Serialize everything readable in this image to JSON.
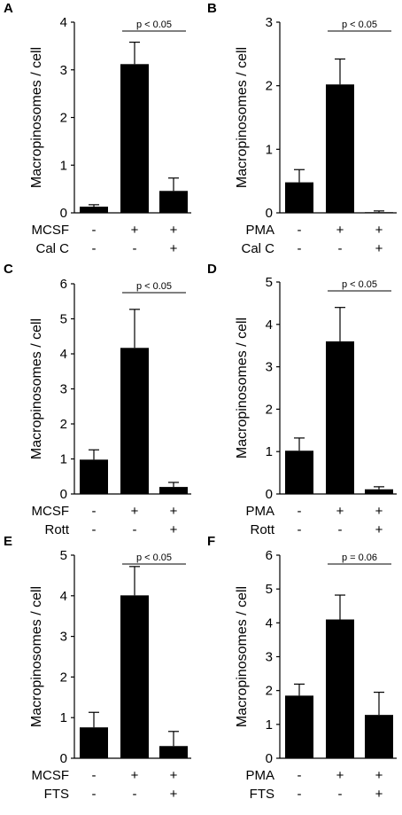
{
  "chart_data": [
    {
      "panel": "A",
      "type": "bar",
      "ylabel": "Macropinosomes / cell",
      "ylim": [
        0,
        4
      ],
      "yticks": [
        "0",
        "1",
        "2",
        "3",
        "4"
      ],
      "values": [
        0.13,
        3.12,
        0.46
      ],
      "errors": [
        0.04,
        0.46,
        0.27
      ],
      "conditions": [
        {
          "label": "MCSF",
          "signs": [
            "-",
            "+",
            "+"
          ]
        },
        {
          "label": "Cal C",
          "signs": [
            "-",
            "-",
            "+"
          ]
        }
      ],
      "annotation": {
        "text": "p < 0.05",
        "from": 1,
        "to": 2
      }
    },
    {
      "panel": "B",
      "type": "bar",
      "ylabel": "Macropinosomes / cell",
      "ylim": [
        0,
        3
      ],
      "yticks": [
        "0",
        "1",
        "2",
        "3"
      ],
      "values": [
        0.48,
        2.02,
        0.01
      ],
      "errors": [
        0.2,
        0.4,
        0.02
      ],
      "conditions": [
        {
          "label": "PMA",
          "signs": [
            "-",
            "+",
            "+"
          ]
        },
        {
          "label": "Cal C",
          "signs": [
            "-",
            "-",
            "+"
          ]
        }
      ],
      "annotation": {
        "text": "p < 0.05",
        "from": 1,
        "to": 2
      }
    },
    {
      "panel": "C",
      "type": "bar",
      "ylabel": "Macropinosomes / cell",
      "ylim": [
        0,
        6
      ],
      "yticks": [
        "0",
        "1",
        "2",
        "3",
        "4",
        "5",
        "6"
      ],
      "values": [
        0.98,
        4.17,
        0.2
      ],
      "errors": [
        0.28,
        1.1,
        0.13
      ],
      "conditions": [
        {
          "label": "MCSF",
          "signs": [
            "-",
            "+",
            "+"
          ]
        },
        {
          "label": "Rott",
          "signs": [
            "-",
            "-",
            "+"
          ]
        }
      ],
      "annotation": {
        "text": "p < 0.05",
        "from": 1,
        "to": 2
      }
    },
    {
      "panel": "D",
      "type": "bar",
      "ylabel": "Macropinosomes / cell",
      "ylim": [
        0,
        5
      ],
      "yticks": [
        "0",
        "1",
        "2",
        "3",
        "4",
        "5"
      ],
      "values": [
        1.02,
        3.6,
        0.11
      ],
      "errors": [
        0.3,
        0.8,
        0.06
      ],
      "conditions": [
        {
          "label": "PMA",
          "signs": [
            "-",
            "+",
            "+"
          ]
        },
        {
          "label": "Rott",
          "signs": [
            "-",
            "-",
            "+"
          ]
        }
      ],
      "annotation": {
        "text": "p < 0.05",
        "from": 1,
        "to": 2
      }
    },
    {
      "panel": "E",
      "type": "bar",
      "ylabel": "Macropinosomes / cell",
      "ylim": [
        0,
        5
      ],
      "yticks": [
        "0",
        "1",
        "2",
        "3",
        "4",
        "5"
      ],
      "values": [
        0.76,
        4.01,
        0.3
      ],
      "errors": [
        0.37,
        0.71,
        0.36
      ],
      "conditions": [
        {
          "label": "MCSF",
          "signs": [
            "-",
            "+",
            "+"
          ]
        },
        {
          "label": "FTS",
          "signs": [
            "-",
            "-",
            "+"
          ]
        }
      ],
      "annotation": {
        "text": "p < 0.05",
        "from": 1,
        "to": 2
      }
    },
    {
      "panel": "F",
      "type": "bar",
      "ylabel": "Macropinosomes / cell",
      "ylim": [
        0,
        6
      ],
      "yticks": [
        "0",
        "1",
        "2",
        "3",
        "4",
        "5",
        "6"
      ],
      "values": [
        1.85,
        4.1,
        1.28
      ],
      "errors": [
        0.34,
        0.72,
        0.67
      ],
      "conditions": [
        {
          "label": "PMA",
          "signs": [
            "-",
            "+",
            "+"
          ]
        },
        {
          "label": "FTS",
          "signs": [
            "-",
            "-",
            "+"
          ]
        }
      ],
      "annotation": {
        "text": "p = 0.06",
        "from": 1,
        "to": 2
      }
    }
  ]
}
